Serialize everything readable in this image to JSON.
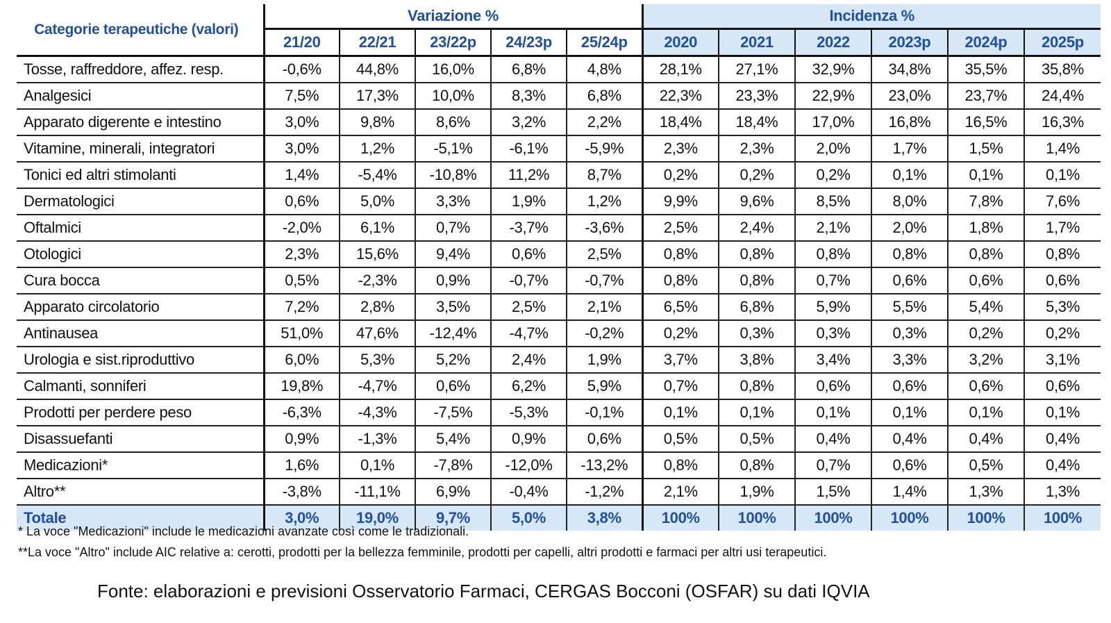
{
  "table": {
    "category_header": "Categorie terapeutiche (valori)",
    "group_variation": "Variazione %",
    "group_incidence": "Incidenza %",
    "variation_columns": [
      "21/20",
      "22/21",
      "23/22p",
      "24/23p",
      "25/24p"
    ],
    "incidence_columns": [
      "2020",
      "2021",
      "2022",
      "2023p",
      "2024p",
      "2025p"
    ],
    "rows": [
      {
        "label": "Tosse, raffreddore, affez. resp.",
        "variation": [
          "-0,6%",
          "44,8%",
          "16,0%",
          "6,8%",
          "4,8%"
        ],
        "incidence": [
          "28,1%",
          "27,1%",
          "32,9%",
          "34,8%",
          "35,5%",
          "35,8%"
        ]
      },
      {
        "label": "Analgesici",
        "variation": [
          "7,5%",
          "17,3%",
          "10,0%",
          "8,3%",
          "6,8%"
        ],
        "incidence": [
          "22,3%",
          "23,3%",
          "22,9%",
          "23,0%",
          "23,7%",
          "24,4%"
        ]
      },
      {
        "label": "Apparato digerente e intestino",
        "variation": [
          "3,0%",
          "9,8%",
          "8,6%",
          "3,2%",
          "2,2%"
        ],
        "incidence": [
          "18,4%",
          "18,4%",
          "17,0%",
          "16,8%",
          "16,5%",
          "16,3%"
        ]
      },
      {
        "label": "Vitamine, minerali, integratori",
        "variation": [
          "3,0%",
          "1,2%",
          "-5,1%",
          "-6,1%",
          "-5,9%"
        ],
        "incidence": [
          "2,3%",
          "2,3%",
          "2,0%",
          "1,7%",
          "1,5%",
          "1,4%"
        ]
      },
      {
        "label": "Tonici ed altri stimolanti",
        "variation": [
          "1,4%",
          "-5,4%",
          "-10,8%",
          "11,2%",
          "8,7%"
        ],
        "incidence": [
          "0,2%",
          "0,2%",
          "0,2%",
          "0,1%",
          "0,1%",
          "0,1%"
        ]
      },
      {
        "label": "Dermatologici",
        "variation": [
          "0,6%",
          "5,0%",
          "3,3%",
          "1,9%",
          "1,2%"
        ],
        "incidence": [
          "9,9%",
          "9,6%",
          "8,5%",
          "8,0%",
          "7,8%",
          "7,6%"
        ]
      },
      {
        "label": "Oftalmici",
        "variation": [
          "-2,0%",
          "6,1%",
          "0,7%",
          "-3,7%",
          "-3,6%"
        ],
        "incidence": [
          "2,5%",
          "2,4%",
          "2,1%",
          "2,0%",
          "1,8%",
          "1,7%"
        ]
      },
      {
        "label": "Otologici",
        "variation": [
          "2,3%",
          "15,6%",
          "9,4%",
          "0,6%",
          "2,5%"
        ],
        "incidence": [
          "0,8%",
          "0,8%",
          "0,8%",
          "0,8%",
          "0,8%",
          "0,8%"
        ]
      },
      {
        "label": "Cura bocca",
        "variation": [
          "0,5%",
          "-2,3%",
          "0,9%",
          "-0,7%",
          "-0,7%"
        ],
        "incidence": [
          "0,8%",
          "0,8%",
          "0,7%",
          "0,6%",
          "0,6%",
          "0,6%"
        ]
      },
      {
        "label": "Apparato circolatorio",
        "variation": [
          "7,2%",
          "2,8%",
          "3,5%",
          "2,5%",
          "2,1%"
        ],
        "incidence": [
          "6,5%",
          "6,8%",
          "5,9%",
          "5,5%",
          "5,4%",
          "5,3%"
        ]
      },
      {
        "label": "Antinausea",
        "variation": [
          "51,0%",
          "47,6%",
          "-12,4%",
          "-4,7%",
          "-0,2%"
        ],
        "incidence": [
          "0,2%",
          "0,3%",
          "0,3%",
          "0,3%",
          "0,2%",
          "0,2%"
        ]
      },
      {
        "label": "Urologia e sist.riproduttivo",
        "variation": [
          "6,0%",
          "5,3%",
          "5,2%",
          "2,4%",
          "1,9%"
        ],
        "incidence": [
          "3,7%",
          "3,8%",
          "3,4%",
          "3,3%",
          "3,2%",
          "3,1%"
        ]
      },
      {
        "label": "Calmanti, sonniferi",
        "variation": [
          "19,8%",
          "-4,7%",
          "0,6%",
          "6,2%",
          "5,9%"
        ],
        "incidence": [
          "0,7%",
          "0,8%",
          "0,6%",
          "0,6%",
          "0,6%",
          "0,6%"
        ]
      },
      {
        "label": "Prodotti per perdere peso",
        "variation": [
          "-6,3%",
          "-4,3%",
          "-7,5%",
          "-5,3%",
          "-0,1%"
        ],
        "incidence": [
          "0,1%",
          "0,1%",
          "0,1%",
          "0,1%",
          "0,1%",
          "0,1%"
        ]
      },
      {
        "label": "Disassuefanti",
        "variation": [
          "0,9%",
          "-1,3%",
          "5,4%",
          "0,9%",
          "0,6%"
        ],
        "incidence": [
          "0,5%",
          "0,5%",
          "0,4%",
          "0,4%",
          "0,4%",
          "0,4%"
        ]
      },
      {
        "label": "Medicazioni*",
        "variation": [
          "1,6%",
          "0,1%",
          "-7,8%",
          "-12,0%",
          "-13,2%"
        ],
        "incidence": [
          "0,8%",
          "0,8%",
          "0,7%",
          "0,6%",
          "0,5%",
          "0,4%"
        ]
      },
      {
        "label": "Altro**",
        "variation": [
          "-3,8%",
          "-11,1%",
          "6,9%",
          "-0,4%",
          "-1,2%"
        ],
        "incidence": [
          "2,1%",
          "1,9%",
          "1,5%",
          "1,4%",
          "1,3%",
          "1,3%"
        ]
      }
    ],
    "total": {
      "label": "Totale",
      "variation": [
        "3,0%",
        "19,0%",
        "9,7%",
        "5,0%",
        "3,8%"
      ],
      "incidence": [
        "100%",
        "100%",
        "100%",
        "100%",
        "100%",
        "100%"
      ]
    }
  },
  "notes": {
    "note1": "*  La voce \"Medicazioni\" include le medicazioni avanzate così come le tradizionali.",
    "note2": "**La voce \"Altro\" include AIC relative a: cerotti, prodotti per la bellezza femminile, prodotti per capelli, altri prodotti e farmaci per altri usi terapeutici."
  },
  "source": "Fonte: elaborazioni e previsioni Osservatorio Farmaci, CERGAS Bocconi (OSFAR) su dati IQVIA",
  "colors": {
    "header_text": "#1f4fa0",
    "incidence_bg": "#d6e8f6"
  }
}
